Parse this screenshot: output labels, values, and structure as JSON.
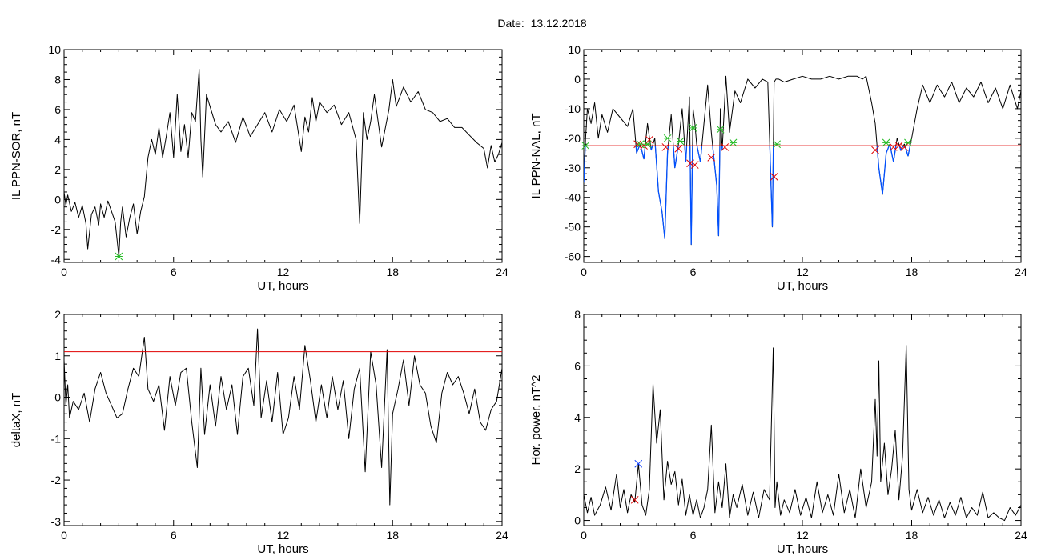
{
  "page_title": "Date:  13.12.2018",
  "colors": {
    "axis": "#000000",
    "trace": "#000000",
    "threshold": "#e00000",
    "below": "#0050ff",
    "mark_red": "#e00000",
    "mark_green": "#22bb22",
    "mark_blue": "#1040ff"
  },
  "chart_data": [
    {
      "id": "sor",
      "type": "line",
      "xlabel": "UT, hours",
      "ylabel": "IL PPN-SOR, nT",
      "xlim": [
        0,
        24
      ],
      "ylim": [
        -4.2,
        10
      ],
      "xticks": [
        0,
        6,
        12,
        18,
        24
      ],
      "yticks": [
        -4,
        -2,
        0,
        2,
        4,
        6,
        8,
        10
      ],
      "series": [
        {
          "x": [
            0,
            0.1,
            0.2,
            0.4,
            0.6,
            0.8,
            1.0,
            1.2,
            1.3,
            1.5,
            1.7,
            1.9,
            2.0,
            2.2,
            2.4,
            2.6,
            2.8,
            3.0,
            3.1,
            3.2,
            3.4,
            3.6,
            3.8,
            4.0,
            4.2,
            4.4,
            4.6,
            4.8,
            5.0,
            5.2,
            5.4,
            5.6,
            5.8,
            6.0,
            6.2,
            6.4,
            6.6,
            6.8,
            7.0,
            7.2,
            7.4,
            7.5,
            7.6,
            7.8,
            8.0,
            8.3,
            8.6,
            9.0,
            9.4,
            9.8,
            10.2,
            10.6,
            11.0,
            11.4,
            11.8,
            12.2,
            12.6,
            13.0,
            13.2,
            13.4,
            13.6,
            13.8,
            14.0,
            14.4,
            14.8,
            15.2,
            15.6,
            16.0,
            16.2,
            16.4,
            16.6,
            16.8,
            17.0,
            17.4,
            17.8,
            18.0,
            18.2,
            18.6,
            19.0,
            19.4,
            19.8,
            20.2,
            20.6,
            21.0,
            21.4,
            21.8,
            22.2,
            22.6,
            23.0,
            23.2,
            23.4,
            23.6,
            23.8,
            24.0
          ],
          "y": [
            0.5,
            -0.4,
            0.3,
            -0.8,
            -0.2,
            -1.2,
            -0.4,
            -1.6,
            -3.3,
            -1.0,
            -0.5,
            -1.7,
            -0.3,
            -1.2,
            -0.1,
            -0.8,
            -1.5,
            -3.8,
            -1.5,
            -0.5,
            -2.5,
            -1.2,
            -0.3,
            -2.3,
            -0.8,
            0.2,
            2.8,
            4.0,
            3.0,
            4.8,
            2.8,
            4.2,
            5.8,
            2.8,
            7.0,
            3.2,
            5.0,
            2.8,
            5.8,
            5.2,
            8.7,
            4.0,
            1.5,
            7.0,
            6.2,
            5.0,
            4.5,
            5.2,
            3.8,
            5.5,
            4.2,
            5.0,
            5.8,
            4.5,
            6.0,
            5.2,
            6.3,
            3.2,
            5.5,
            4.5,
            6.8,
            5.2,
            6.5,
            5.8,
            6.3,
            5.0,
            5.8,
            4.0,
            -1.6,
            5.8,
            4.0,
            5.2,
            7.0,
            3.5,
            6.0,
            8.0,
            6.2,
            7.5,
            6.5,
            7.2,
            6.0,
            5.8,
            5.2,
            5.4,
            4.8,
            4.8,
            4.3,
            3.8,
            3.4,
            2.1,
            3.6,
            2.5,
            3.0,
            3.8
          ]
        }
      ],
      "markers": [
        {
          "color": "green",
          "x": 3.0,
          "y": -3.8
        }
      ]
    },
    {
      "id": "nal",
      "type": "line",
      "xlabel": "UT, hours",
      "ylabel": "IL PPN-NAL, nT",
      "xlim": [
        0,
        24
      ],
      "ylim": [
        -62,
        10
      ],
      "xticks": [
        0,
        6,
        12,
        18,
        24
      ],
      "yticks": [
        -60,
        -50,
        -40,
        -30,
        -20,
        -10,
        0,
        10
      ],
      "threshold": -22.5,
      "series": [
        {
          "x": [
            0,
            0.1,
            0.2,
            0.4,
            0.6,
            0.8,
            1.0,
            1.3,
            1.6,
            2.0,
            2.4,
            2.7,
            2.9,
            3.1,
            3.3,
            3.5,
            3.7,
            3.9,
            4.1,
            4.3,
            4.45,
            4.6,
            4.8,
            5.0,
            5.2,
            5.4,
            5.6,
            5.8,
            5.9,
            6.0,
            6.1,
            6.2,
            6.4,
            6.6,
            6.8,
            7.0,
            7.1,
            7.3,
            7.4,
            7.5,
            7.6,
            7.8,
            8.0,
            8.3,
            8.6,
            9.0,
            9.4,
            9.8,
            10.1,
            10.35,
            10.45,
            10.55,
            10.7,
            11.0,
            11.5,
            12.0,
            12.5,
            13.0,
            13.5,
            14.0,
            14.5,
            15.0,
            15.3,
            15.5,
            15.8,
            16.0,
            16.2,
            16.4,
            16.6,
            16.8,
            17.0,
            17.2,
            17.4,
            17.6,
            17.8,
            18.0,
            18.3,
            18.6,
            19.0,
            19.4,
            19.8,
            20.2,
            20.6,
            21.0,
            21.4,
            21.8,
            22.2,
            22.6,
            23.0,
            23.4,
            23.8,
            24.0
          ],
          "y": [
            -35,
            -20,
            -10,
            -15,
            -8,
            -20,
            -12,
            -18,
            -10,
            -13,
            -16,
            -10,
            -25,
            -22,
            -27,
            -15,
            -24,
            -20,
            -38,
            -45,
            -54,
            -25,
            -12,
            -30,
            -22,
            -10,
            -28,
            -6,
            -56,
            -10,
            -15,
            -22,
            -28,
            -15,
            -2,
            -18,
            -24,
            -36,
            -53,
            -10,
            -24,
            1,
            -18,
            -4,
            -8,
            0,
            -3,
            0,
            -1,
            -50,
            -1,
            0,
            0,
            -1,
            0,
            1,
            0,
            0,
            1,
            0,
            1,
            1,
            0,
            1,
            -8,
            -15,
            -30,
            -39,
            -25,
            -22,
            -28,
            -20,
            -24,
            -22,
            -26,
            -20,
            -10,
            -2,
            -8,
            -2,
            -6,
            -1,
            -8,
            -3,
            -6,
            -1,
            -8,
            -3,
            -10,
            -2,
            -10,
            -4
          ]
        }
      ],
      "markers": [
        {
          "color": "red",
          "x": 2.95,
          "y": -22
        },
        {
          "color": "red",
          "x": 3.3,
          "y": -22.5
        },
        {
          "color": "red",
          "x": 3.6,
          "y": -20.5
        },
        {
          "color": "red",
          "x": 4.5,
          "y": -23
        },
        {
          "color": "red",
          "x": 5.2,
          "y": -23.5
        },
        {
          "color": "red",
          "x": 5.85,
          "y": -28.5
        },
        {
          "color": "red",
          "x": 6.1,
          "y": -29
        },
        {
          "color": "red",
          "x": 7.0,
          "y": -26.5
        },
        {
          "color": "red",
          "x": 7.75,
          "y": -23
        },
        {
          "color": "red",
          "x": 10.45,
          "y": -33
        },
        {
          "color": "red",
          "x": 16.0,
          "y": -24
        },
        {
          "color": "red",
          "x": 17.0,
          "y": -23
        },
        {
          "color": "red",
          "x": 17.3,
          "y": -22.5
        },
        {
          "color": "red",
          "x": 17.6,
          "y": -23
        },
        {
          "color": "green",
          "x": 0.1,
          "y": -22.5
        },
        {
          "color": "green",
          "x": 3.1,
          "y": -22
        },
        {
          "color": "green",
          "x": 3.5,
          "y": -22
        },
        {
          "color": "green",
          "x": 4.6,
          "y": -20
        },
        {
          "color": "green",
          "x": 5.3,
          "y": -21
        },
        {
          "color": "green",
          "x": 6.0,
          "y": -16.5
        },
        {
          "color": "green",
          "x": 7.5,
          "y": -17
        },
        {
          "color": "green",
          "x": 8.2,
          "y": -21.5
        },
        {
          "color": "green",
          "x": 10.6,
          "y": -22
        },
        {
          "color": "green",
          "x": 16.6,
          "y": -21.5
        },
        {
          "color": "green",
          "x": 17.8,
          "y": -21.5
        }
      ]
    },
    {
      "id": "deltax",
      "type": "line",
      "xlabel": "UT, hours",
      "ylabel": "deltaX, nT",
      "xlim": [
        0,
        24
      ],
      "ylim": [
        -3.1,
        2
      ],
      "xticks": [
        0,
        6,
        12,
        18,
        24
      ],
      "yticks": [
        -3,
        -2,
        -1,
        0,
        1,
        2
      ],
      "threshold": 1.1,
      "series": [
        {
          "x": [
            0,
            0.1,
            0.2,
            0.3,
            0.5,
            0.8,
            1.1,
            1.4,
            1.7,
            2.0,
            2.3,
            2.6,
            2.9,
            3.2,
            3.5,
            3.8,
            4.1,
            4.4,
            4.6,
            4.9,
            5.2,
            5.5,
            5.8,
            6.1,
            6.4,
            6.7,
            7.0,
            7.3,
            7.5,
            7.7,
            8.0,
            8.3,
            8.6,
            8.9,
            9.2,
            9.5,
            9.8,
            10.1,
            10.4,
            10.6,
            10.8,
            11.1,
            11.4,
            11.7,
            12.0,
            12.3,
            12.6,
            12.9,
            13.2,
            13.5,
            13.8,
            14.1,
            14.4,
            14.7,
            15.0,
            15.3,
            15.6,
            15.9,
            16.2,
            16.5,
            16.8,
            17.1,
            17.4,
            17.7,
            17.85,
            18.0,
            18.3,
            18.6,
            18.9,
            19.2,
            19.5,
            19.8,
            20.1,
            20.4,
            20.7,
            21.0,
            21.3,
            21.6,
            21.9,
            22.2,
            22.5,
            22.8,
            23.1,
            23.4,
            23.7,
            24.0
          ],
          "y": [
            0.9,
            -0.2,
            0.3,
            -0.5,
            -0.1,
            -0.3,
            0.1,
            -0.6,
            0.2,
            0.6,
            0.1,
            -0.2,
            -0.5,
            -0.4,
            0.2,
            0.7,
            0.5,
            1.45,
            0.2,
            -0.1,
            0.3,
            -0.8,
            0.5,
            -0.2,
            0.6,
            0.7,
            -0.6,
            -1.7,
            0.7,
            -0.9,
            0.3,
            -0.7,
            0.5,
            -0.3,
            0.3,
            -0.9,
            0.5,
            0.7,
            -0.2,
            1.65,
            -0.5,
            0.4,
            -0.6,
            0.6,
            -0.9,
            -0.5,
            0.5,
            -0.3,
            1.25,
            0.4,
            -0.6,
            0.3,
            -0.5,
            0.5,
            -0.3,
            0.4,
            -1.0,
            0.2,
            0.7,
            -1.8,
            1.1,
            0.3,
            -1.7,
            1.15,
            -2.6,
            -0.4,
            0.2,
            0.9,
            -0.2,
            1.0,
            0.3,
            0.1,
            -0.7,
            -1.1,
            0.1,
            0.6,
            0.3,
            0.5,
            0.1,
            -0.4,
            0.2,
            -0.6,
            -0.8,
            -0.3,
            -0.1,
            0.7
          ]
        }
      ],
      "markers": []
    },
    {
      "id": "hpow",
      "type": "line",
      "xlabel": "UT, hours",
      "ylabel": "Hor. power, nT^2",
      "xlim": [
        0,
        24
      ],
      "ylim": [
        -0.2,
        8
      ],
      "xticks": [
        0,
        6,
        12,
        18,
        24
      ],
      "yticks": [
        0,
        2,
        4,
        6,
        8
      ],
      "series": [
        {
          "x": [
            0,
            0.2,
            0.4,
            0.6,
            0.9,
            1.2,
            1.5,
            1.8,
            2.0,
            2.2,
            2.4,
            2.6,
            2.8,
            3.0,
            3.2,
            3.4,
            3.6,
            3.8,
            4.0,
            4.2,
            4.4,
            4.6,
            4.8,
            5.0,
            5.2,
            5.4,
            5.6,
            5.8,
            6.0,
            6.2,
            6.4,
            6.6,
            6.8,
            7.0,
            7.2,
            7.4,
            7.6,
            7.8,
            8.0,
            8.2,
            8.4,
            8.7,
            9.0,
            9.3,
            9.6,
            9.9,
            10.2,
            10.4,
            10.5,
            10.6,
            10.8,
            11.0,
            11.3,
            11.6,
            11.9,
            12.2,
            12.5,
            12.8,
            13.1,
            13.4,
            13.7,
            14.0,
            14.3,
            14.6,
            14.9,
            15.2,
            15.5,
            15.8,
            16.0,
            16.1,
            16.2,
            16.3,
            16.5,
            16.7,
            16.9,
            17.1,
            17.3,
            17.5,
            17.7,
            17.85,
            18.0,
            18.3,
            18.6,
            18.9,
            19.2,
            19.5,
            19.8,
            20.1,
            20.4,
            20.7,
            21.0,
            21.3,
            21.6,
            21.9,
            22.2,
            22.5,
            22.8,
            23.1,
            23.4,
            23.7,
            24.0
          ],
          "y": [
            1.0,
            0.3,
            0.9,
            0.2,
            0.6,
            1.3,
            0.4,
            1.8,
            0.5,
            1.2,
            0.3,
            1.0,
            0.7,
            2.2,
            0.6,
            0.2,
            1.2,
            5.3,
            3.0,
            4.3,
            0.8,
            2.3,
            1.4,
            1.9,
            0.6,
            1.6,
            0.2,
            1.0,
            0.2,
            0.8,
            0.1,
            0.5,
            1.2,
            3.7,
            0.3,
            1.5,
            0.5,
            2.2,
            0.1,
            1.0,
            0.5,
            1.4,
            0.2,
            1.1,
            0.1,
            1.2,
            0.8,
            6.7,
            0.5,
            1.5,
            0.2,
            0.8,
            0.3,
            1.2,
            0.2,
            0.9,
            0.1,
            1.5,
            0.3,
            1.0,
            0.2,
            1.8,
            0.3,
            1.2,
            0.1,
            2.0,
            0.5,
            1.5,
            4.7,
            2.5,
            6.2,
            1.5,
            3.0,
            1.0,
            2.0,
            3.5,
            0.8,
            2.5,
            6.8,
            1.2,
            0.4,
            1.2,
            0.3,
            0.9,
            0.2,
            0.8,
            0.1,
            0.7,
            0.2,
            0.9,
            0.1,
            0.5,
            0.2,
            1.1,
            0.1,
            0.3,
            0.1,
            0.0,
            0.5,
            0.2,
            0.6
          ]
        }
      ],
      "markers": [
        {
          "color": "red",
          "x": 2.8,
          "y": 0.8
        },
        {
          "color": "blue",
          "x": 3.0,
          "y": 2.2
        }
      ]
    }
  ]
}
